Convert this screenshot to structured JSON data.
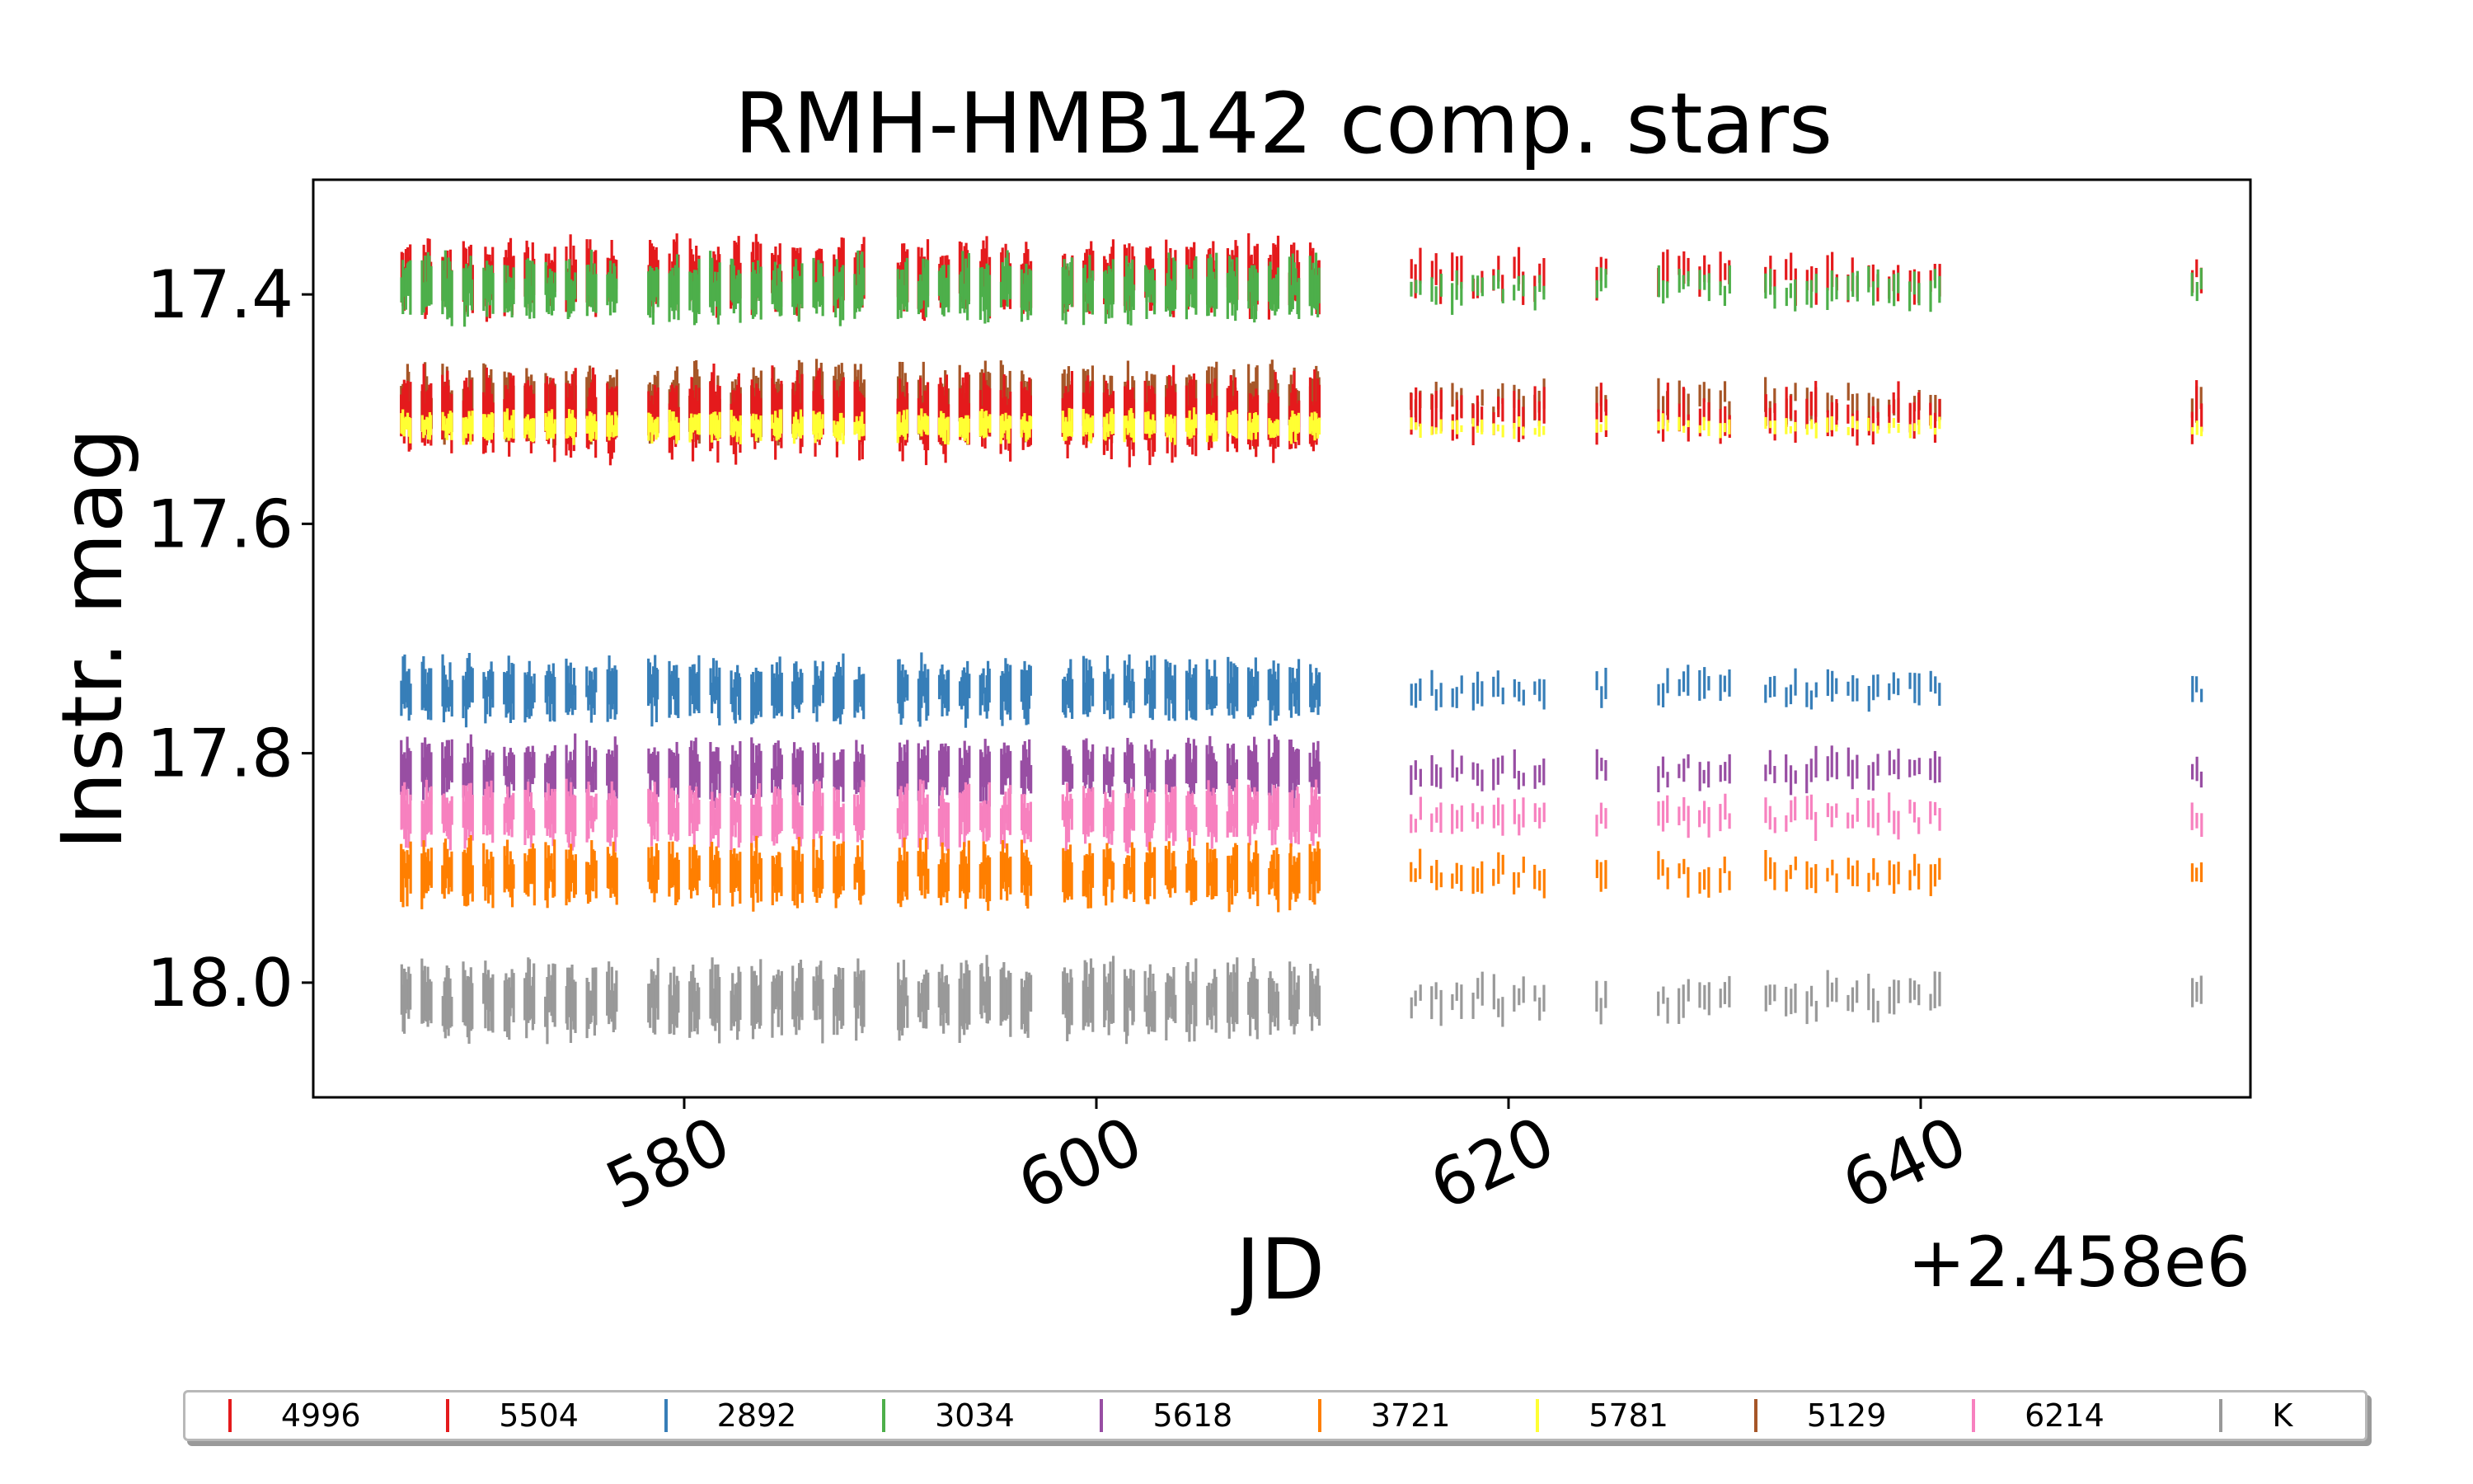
{
  "chart_data": {
    "type": "scatter",
    "title": "RMH-HMB142 comp. stars",
    "xlabel": "JD",
    "ylabel": "Instr. mag",
    "x_offset_label": "+2.458e6",
    "xlim": [
      562,
      656
    ],
    "ylim": [
      18.1,
      17.3
    ],
    "y_inverted": true,
    "xticks": [
      580,
      600,
      620,
      640
    ],
    "yticks": [
      17.4,
      17.6,
      17.8,
      18.0
    ],
    "ytick_labels": [
      "17.4",
      "17.6",
      "17.8",
      "18.0"
    ],
    "xtick_labels": [
      "580",
      "600",
      "620",
      "640"
    ],
    "marker": "vertical-line",
    "grid": false,
    "legend_placement": "bottom",
    "observation_nights": [
      566.5,
      567.5,
      568.5,
      569.5,
      570.5,
      571.5,
      572.5,
      573.5,
      574.5,
      575.5,
      576.5,
      578.5,
      579.5,
      580.5,
      581.5,
      582.5,
      583.5,
      584.5,
      585.5,
      586.5,
      587.5,
      588.5,
      590.6,
      591.6,
      592.6,
      593.6,
      594.6,
      595.6,
      596.6,
      598.6,
      599.6,
      600.6,
      601.6,
      602.6,
      603.6,
      604.6,
      605.6,
      606.6,
      607.6,
      608.6,
      609.6,
      610.6,
      615.5,
      616.5,
      617.5,
      618.5,
      619.5,
      620.5,
      621.5,
      624.5,
      627.5,
      628.5,
      629.5,
      630.5,
      632.7,
      633.7,
      634.7,
      635.7,
      636.7,
      637.7,
      638.7,
      639.7,
      640.7,
      653.4
    ],
    "series": [
      {
        "name": "4996",
        "color": "#e41a1c",
        "mean_mag": 17.385,
        "spread": 0.035
      },
      {
        "name": "5504",
        "color": "#e41a1c",
        "mean_mag": 17.505,
        "spread": 0.04
      },
      {
        "name": "2892",
        "color": "#377eb8",
        "mean_mag": 17.745,
        "spread": 0.03
      },
      {
        "name": "3034",
        "color": "#4daf4a",
        "mean_mag": 17.395,
        "spread": 0.03
      },
      {
        "name": "5618",
        "color": "#984ea3",
        "mean_mag": 17.815,
        "spread": 0.03
      },
      {
        "name": "3721",
        "color": "#ff7f00",
        "mean_mag": 17.905,
        "spread": 0.03
      },
      {
        "name": "5781",
        "color": "#ffff33",
        "mean_mag": 17.515,
        "spread": 0.015
      },
      {
        "name": "5129",
        "color": "#a65628",
        "mean_mag": 17.495,
        "spread": 0.035
      },
      {
        "name": "6214",
        "color": "#f781bf",
        "mean_mag": 17.855,
        "spread": 0.03
      },
      {
        "name": "K",
        "color": "#999999",
        "mean_mag": 18.015,
        "spread": 0.035
      }
    ]
  }
}
